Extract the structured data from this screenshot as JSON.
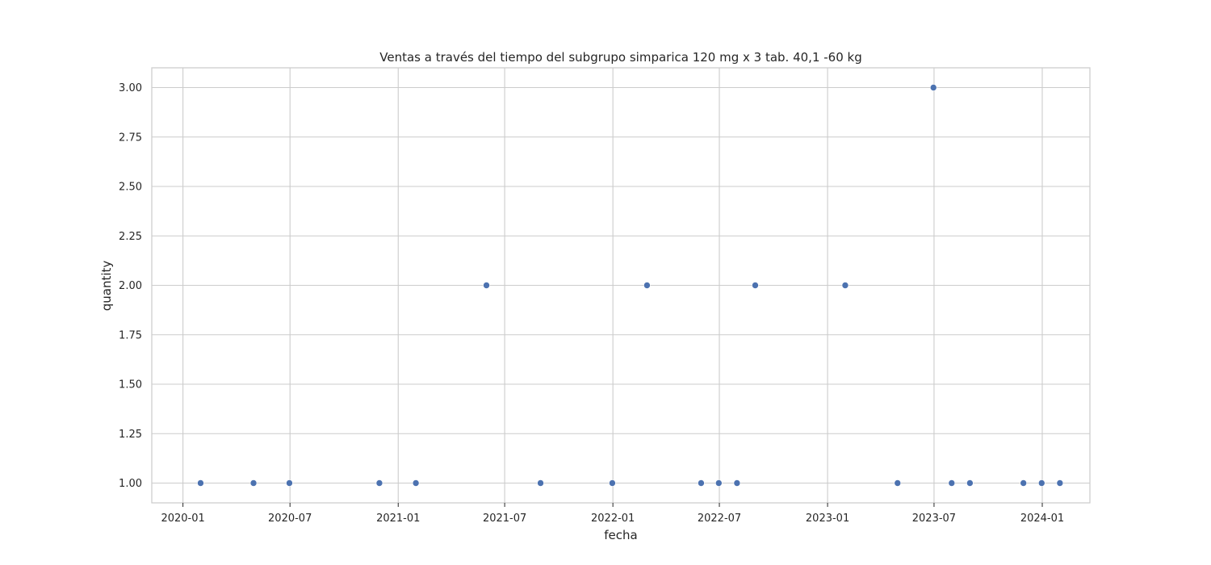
{
  "chart_data": {
    "type": "scatter",
    "title": "Ventas a través del tiempo del subgrupo simparica 120 mg  x 3 tab. 40,1 -60 kg",
    "xlabel": "fecha",
    "ylabel": "quantity",
    "x_ticks": [
      "2020-01",
      "2020-07",
      "2021-01",
      "2021-07",
      "2022-01",
      "2022-07",
      "2023-01",
      "2023-07",
      "2024-01"
    ],
    "y_ticks": [
      "1.00",
      "1.25",
      "1.50",
      "1.75",
      "2.00",
      "2.25",
      "2.50",
      "2.75",
      "3.00"
    ],
    "xlim": [
      "2019-11-09",
      "2024-03-22"
    ],
    "ylim": [
      0.9,
      3.1
    ],
    "grid": true,
    "marker_color": "#4c72b0",
    "points": [
      {
        "x": "2020-01-31",
        "y": 1
      },
      {
        "x": "2020-04-30",
        "y": 1
      },
      {
        "x": "2020-06-30",
        "y": 1
      },
      {
        "x": "2020-11-30",
        "y": 1
      },
      {
        "x": "2021-01-31",
        "y": 1
      },
      {
        "x": "2021-05-31",
        "y": 2
      },
      {
        "x": "2021-08-31",
        "y": 1
      },
      {
        "x": "2021-12-31",
        "y": 1
      },
      {
        "x": "2022-02-28",
        "y": 2
      },
      {
        "x": "2022-05-31",
        "y": 1
      },
      {
        "x": "2022-06-30",
        "y": 1
      },
      {
        "x": "2022-07-31",
        "y": 1
      },
      {
        "x": "2022-08-31",
        "y": 2
      },
      {
        "x": "2023-01-31",
        "y": 2
      },
      {
        "x": "2023-04-30",
        "y": 1
      },
      {
        "x": "2023-06-30",
        "y": 3
      },
      {
        "x": "2023-07-31",
        "y": 1
      },
      {
        "x": "2023-08-31",
        "y": 1
      },
      {
        "x": "2023-11-30",
        "y": 1
      },
      {
        "x": "2023-12-31",
        "y": 1
      },
      {
        "x": "2024-01-31",
        "y": 1
      }
    ]
  }
}
